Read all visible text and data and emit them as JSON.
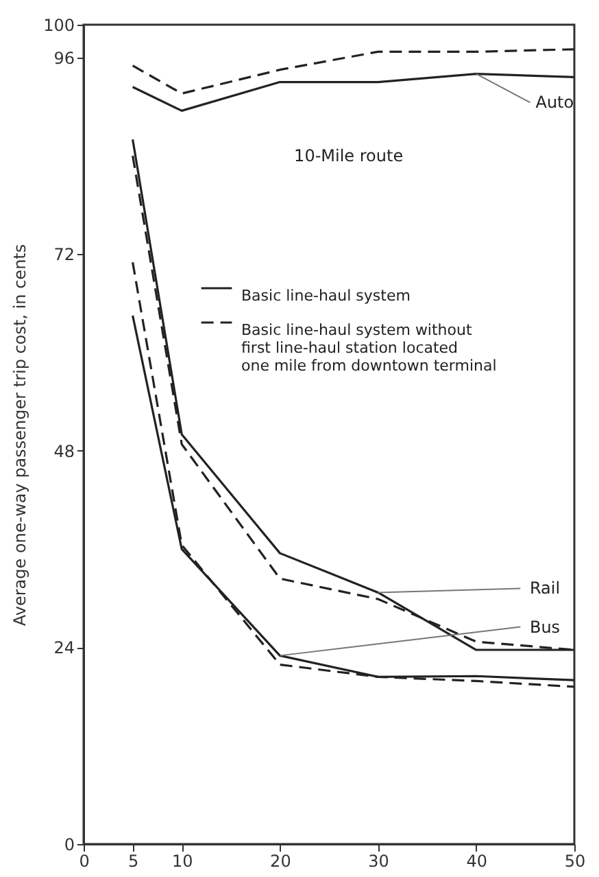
{
  "chart_data": {
    "type": "line",
    "ylabel": "Average one-way passenger trip cost, in cents",
    "x": [
      5,
      10,
      20,
      30,
      40,
      50
    ],
    "xlim": [
      0,
      50
    ],
    "xticks": [
      0,
      5,
      10,
      20,
      30,
      40,
      50
    ],
    "ylim": [
      0,
      100
    ],
    "yticks": [
      0,
      24,
      48,
      72,
      96,
      100
    ],
    "grid": false,
    "legend": "top",
    "marker": "none",
    "series": [
      {
        "name": "Basic line-haul system",
        "color": "#222222",
        "line_style": "solid",
        "values": [
          92.4,
          89.5,
          93,
          93,
          94,
          93.6
        ]
      },
      {
        "name": "Basic line-haul system without first line-haul station located one mile from downtown terminal",
        "color": "#222222",
        "line_style": "dashed",
        "values": [
          95,
          91.6,
          94.5,
          96.7,
          96.7,
          97
        ]
      },
      {
        "color": "#222222",
        "line_style": "solid",
        "values": [
          86,
          50,
          35.5,
          30.7,
          23.7,
          23.7
        ]
      },
      {
        "color": "#222222",
        "line_style": "dashed",
        "values": [
          84,
          48.8,
          32.4,
          29.9,
          24.7,
          23.7
        ]
      },
      {
        "color": "#222222",
        "line_style": "solid",
        "values": [
          64.5,
          36,
          23,
          20.4,
          20.5,
          20
        ]
      },
      {
        "color": "#222222",
        "line_style": "dashed",
        "values": [
          71,
          36.5,
          21.9,
          20.4,
          19.9,
          19.2
        ]
      }
    ],
    "annotations": [
      "10-Mile route",
      {
        "text": "Auto",
        "x": 40,
        "y": 94
      },
      {
        "text": "Rail",
        "x": 30,
        "y": 30.7
      },
      {
        "text": "Bus",
        "x": 20,
        "y": 23
      }
    ]
  }
}
